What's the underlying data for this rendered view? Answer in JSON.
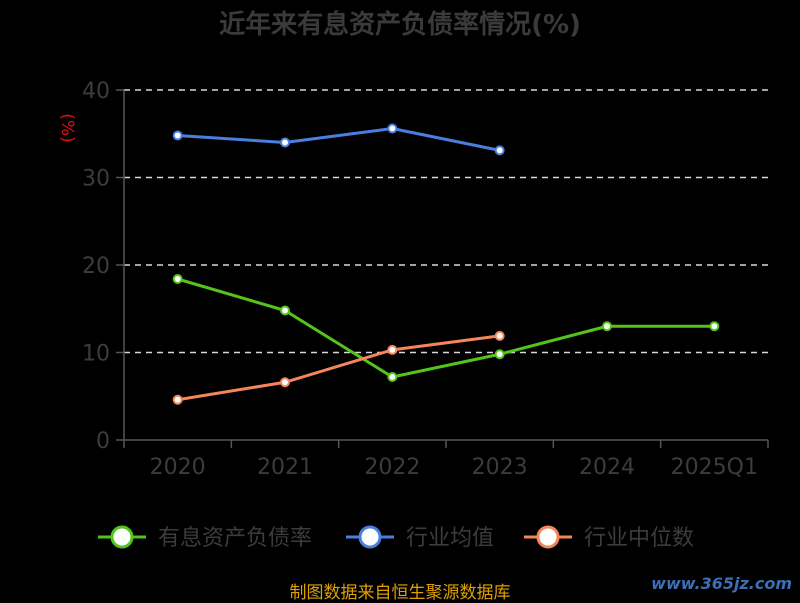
{
  "chart_data": {
    "type": "line",
    "title": "近年来有息资产负债率情况(%)",
    "ylabel": "(%)",
    "ylim": [
      0,
      40
    ],
    "yticks": [
      "0",
      "10",
      "20",
      "30",
      "40"
    ],
    "categories": [
      "2020",
      "2021",
      "2022",
      "2023",
      "2024",
      "2025Q1"
    ],
    "grid": true,
    "legend_position": "bottom",
    "series": [
      {
        "name": "有息资产负债率",
        "color": "#52c41a",
        "values": [
          18.4,
          14.8,
          7.2,
          9.8,
          13.0,
          13.0
        ]
      },
      {
        "name": "行业均值",
        "color": "#4a7fe0",
        "values": [
          34.8,
          34.0,
          35.6,
          33.1,
          null,
          null
        ]
      },
      {
        "name": "行业中位数",
        "color": "#f5865a",
        "values": [
          4.6,
          6.6,
          10.3,
          11.9,
          null,
          null
        ]
      }
    ]
  },
  "footer": {
    "source": "制图数据来自恒生聚源数据库",
    "watermark": "www.365jz.com"
  }
}
